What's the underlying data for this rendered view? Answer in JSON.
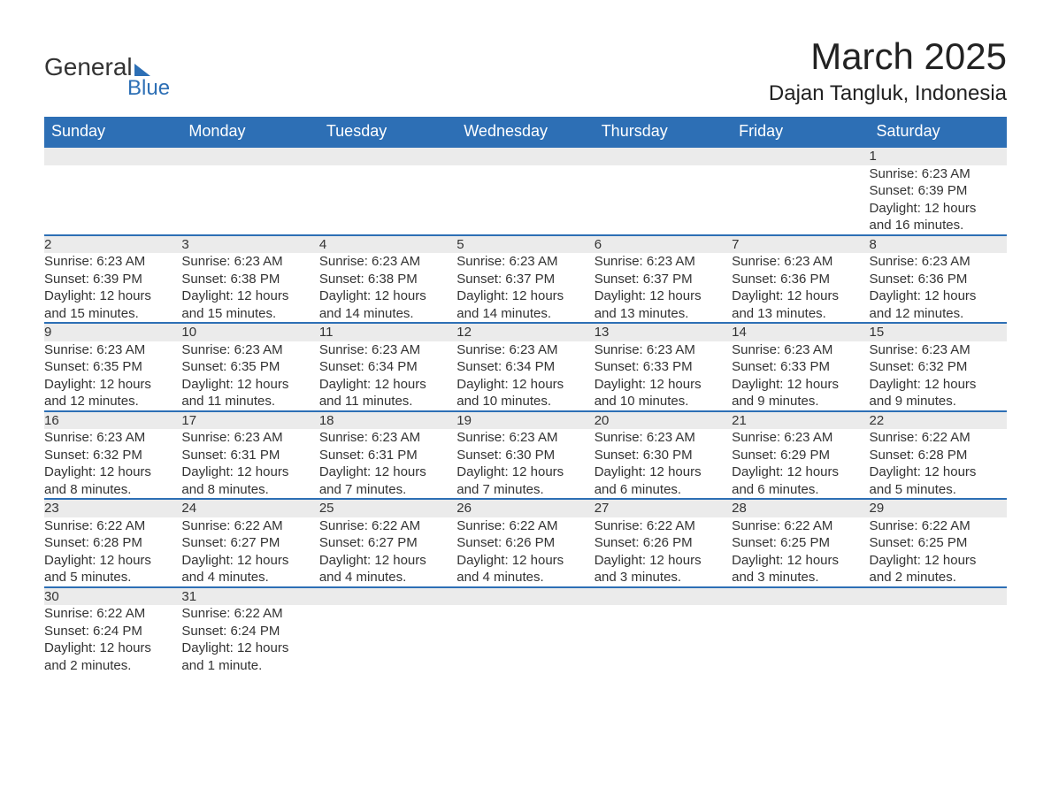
{
  "brand": {
    "word1": "General",
    "word2": "Blue",
    "logo_color": "#2d6fb5"
  },
  "title": "March 2025",
  "location": "Dajan Tangluk, Indonesia",
  "colors": {
    "header_bg": "#2d6fb5",
    "header_text": "#ffffff",
    "daynum_bg": "#ebebeb",
    "row_border": "#2d6fb5",
    "body_text": "#333333",
    "background": "#ffffff"
  },
  "fonts": {
    "title_size": 42,
    "location_size": 24,
    "weekday_size": 18,
    "cell_size": 15
  },
  "weekdays": [
    "Sunday",
    "Monday",
    "Tuesday",
    "Wednesday",
    "Thursday",
    "Friday",
    "Saturday"
  ],
  "weeks": [
    [
      null,
      null,
      null,
      null,
      null,
      null,
      {
        "n": "1",
        "sr": "Sunrise: 6:23 AM",
        "ss": "Sunset: 6:39 PM",
        "d1": "Daylight: 12 hours",
        "d2": "and 16 minutes."
      }
    ],
    [
      {
        "n": "2",
        "sr": "Sunrise: 6:23 AM",
        "ss": "Sunset: 6:39 PM",
        "d1": "Daylight: 12 hours",
        "d2": "and 15 minutes."
      },
      {
        "n": "3",
        "sr": "Sunrise: 6:23 AM",
        "ss": "Sunset: 6:38 PM",
        "d1": "Daylight: 12 hours",
        "d2": "and 15 minutes."
      },
      {
        "n": "4",
        "sr": "Sunrise: 6:23 AM",
        "ss": "Sunset: 6:38 PM",
        "d1": "Daylight: 12 hours",
        "d2": "and 14 minutes."
      },
      {
        "n": "5",
        "sr": "Sunrise: 6:23 AM",
        "ss": "Sunset: 6:37 PM",
        "d1": "Daylight: 12 hours",
        "d2": "and 14 minutes."
      },
      {
        "n": "6",
        "sr": "Sunrise: 6:23 AM",
        "ss": "Sunset: 6:37 PM",
        "d1": "Daylight: 12 hours",
        "d2": "and 13 minutes."
      },
      {
        "n": "7",
        "sr": "Sunrise: 6:23 AM",
        "ss": "Sunset: 6:36 PM",
        "d1": "Daylight: 12 hours",
        "d2": "and 13 minutes."
      },
      {
        "n": "8",
        "sr": "Sunrise: 6:23 AM",
        "ss": "Sunset: 6:36 PM",
        "d1": "Daylight: 12 hours",
        "d2": "and 12 minutes."
      }
    ],
    [
      {
        "n": "9",
        "sr": "Sunrise: 6:23 AM",
        "ss": "Sunset: 6:35 PM",
        "d1": "Daylight: 12 hours",
        "d2": "and 12 minutes."
      },
      {
        "n": "10",
        "sr": "Sunrise: 6:23 AM",
        "ss": "Sunset: 6:35 PM",
        "d1": "Daylight: 12 hours",
        "d2": "and 11 minutes."
      },
      {
        "n": "11",
        "sr": "Sunrise: 6:23 AM",
        "ss": "Sunset: 6:34 PM",
        "d1": "Daylight: 12 hours",
        "d2": "and 11 minutes."
      },
      {
        "n": "12",
        "sr": "Sunrise: 6:23 AM",
        "ss": "Sunset: 6:34 PM",
        "d1": "Daylight: 12 hours",
        "d2": "and 10 minutes."
      },
      {
        "n": "13",
        "sr": "Sunrise: 6:23 AM",
        "ss": "Sunset: 6:33 PM",
        "d1": "Daylight: 12 hours",
        "d2": "and 10 minutes."
      },
      {
        "n": "14",
        "sr": "Sunrise: 6:23 AM",
        "ss": "Sunset: 6:33 PM",
        "d1": "Daylight: 12 hours",
        "d2": "and 9 minutes."
      },
      {
        "n": "15",
        "sr": "Sunrise: 6:23 AM",
        "ss": "Sunset: 6:32 PM",
        "d1": "Daylight: 12 hours",
        "d2": "and 9 minutes."
      }
    ],
    [
      {
        "n": "16",
        "sr": "Sunrise: 6:23 AM",
        "ss": "Sunset: 6:32 PM",
        "d1": "Daylight: 12 hours",
        "d2": "and 8 minutes."
      },
      {
        "n": "17",
        "sr": "Sunrise: 6:23 AM",
        "ss": "Sunset: 6:31 PM",
        "d1": "Daylight: 12 hours",
        "d2": "and 8 minutes."
      },
      {
        "n": "18",
        "sr": "Sunrise: 6:23 AM",
        "ss": "Sunset: 6:31 PM",
        "d1": "Daylight: 12 hours",
        "d2": "and 7 minutes."
      },
      {
        "n": "19",
        "sr": "Sunrise: 6:23 AM",
        "ss": "Sunset: 6:30 PM",
        "d1": "Daylight: 12 hours",
        "d2": "and 7 minutes."
      },
      {
        "n": "20",
        "sr": "Sunrise: 6:23 AM",
        "ss": "Sunset: 6:30 PM",
        "d1": "Daylight: 12 hours",
        "d2": "and 6 minutes."
      },
      {
        "n": "21",
        "sr": "Sunrise: 6:23 AM",
        "ss": "Sunset: 6:29 PM",
        "d1": "Daylight: 12 hours",
        "d2": "and 6 minutes."
      },
      {
        "n": "22",
        "sr": "Sunrise: 6:22 AM",
        "ss": "Sunset: 6:28 PM",
        "d1": "Daylight: 12 hours",
        "d2": "and 5 minutes."
      }
    ],
    [
      {
        "n": "23",
        "sr": "Sunrise: 6:22 AM",
        "ss": "Sunset: 6:28 PM",
        "d1": "Daylight: 12 hours",
        "d2": "and 5 minutes."
      },
      {
        "n": "24",
        "sr": "Sunrise: 6:22 AM",
        "ss": "Sunset: 6:27 PM",
        "d1": "Daylight: 12 hours",
        "d2": "and 4 minutes."
      },
      {
        "n": "25",
        "sr": "Sunrise: 6:22 AM",
        "ss": "Sunset: 6:27 PM",
        "d1": "Daylight: 12 hours",
        "d2": "and 4 minutes."
      },
      {
        "n": "26",
        "sr": "Sunrise: 6:22 AM",
        "ss": "Sunset: 6:26 PM",
        "d1": "Daylight: 12 hours",
        "d2": "and 4 minutes."
      },
      {
        "n": "27",
        "sr": "Sunrise: 6:22 AM",
        "ss": "Sunset: 6:26 PM",
        "d1": "Daylight: 12 hours",
        "d2": "and 3 minutes."
      },
      {
        "n": "28",
        "sr": "Sunrise: 6:22 AM",
        "ss": "Sunset: 6:25 PM",
        "d1": "Daylight: 12 hours",
        "d2": "and 3 minutes."
      },
      {
        "n": "29",
        "sr": "Sunrise: 6:22 AM",
        "ss": "Sunset: 6:25 PM",
        "d1": "Daylight: 12 hours",
        "d2": "and 2 minutes."
      }
    ],
    [
      {
        "n": "30",
        "sr": "Sunrise: 6:22 AM",
        "ss": "Sunset: 6:24 PM",
        "d1": "Daylight: 12 hours",
        "d2": "and 2 minutes."
      },
      {
        "n": "31",
        "sr": "Sunrise: 6:22 AM",
        "ss": "Sunset: 6:24 PM",
        "d1": "Daylight: 12 hours",
        "d2": "and 1 minute."
      },
      null,
      null,
      null,
      null,
      null
    ]
  ]
}
